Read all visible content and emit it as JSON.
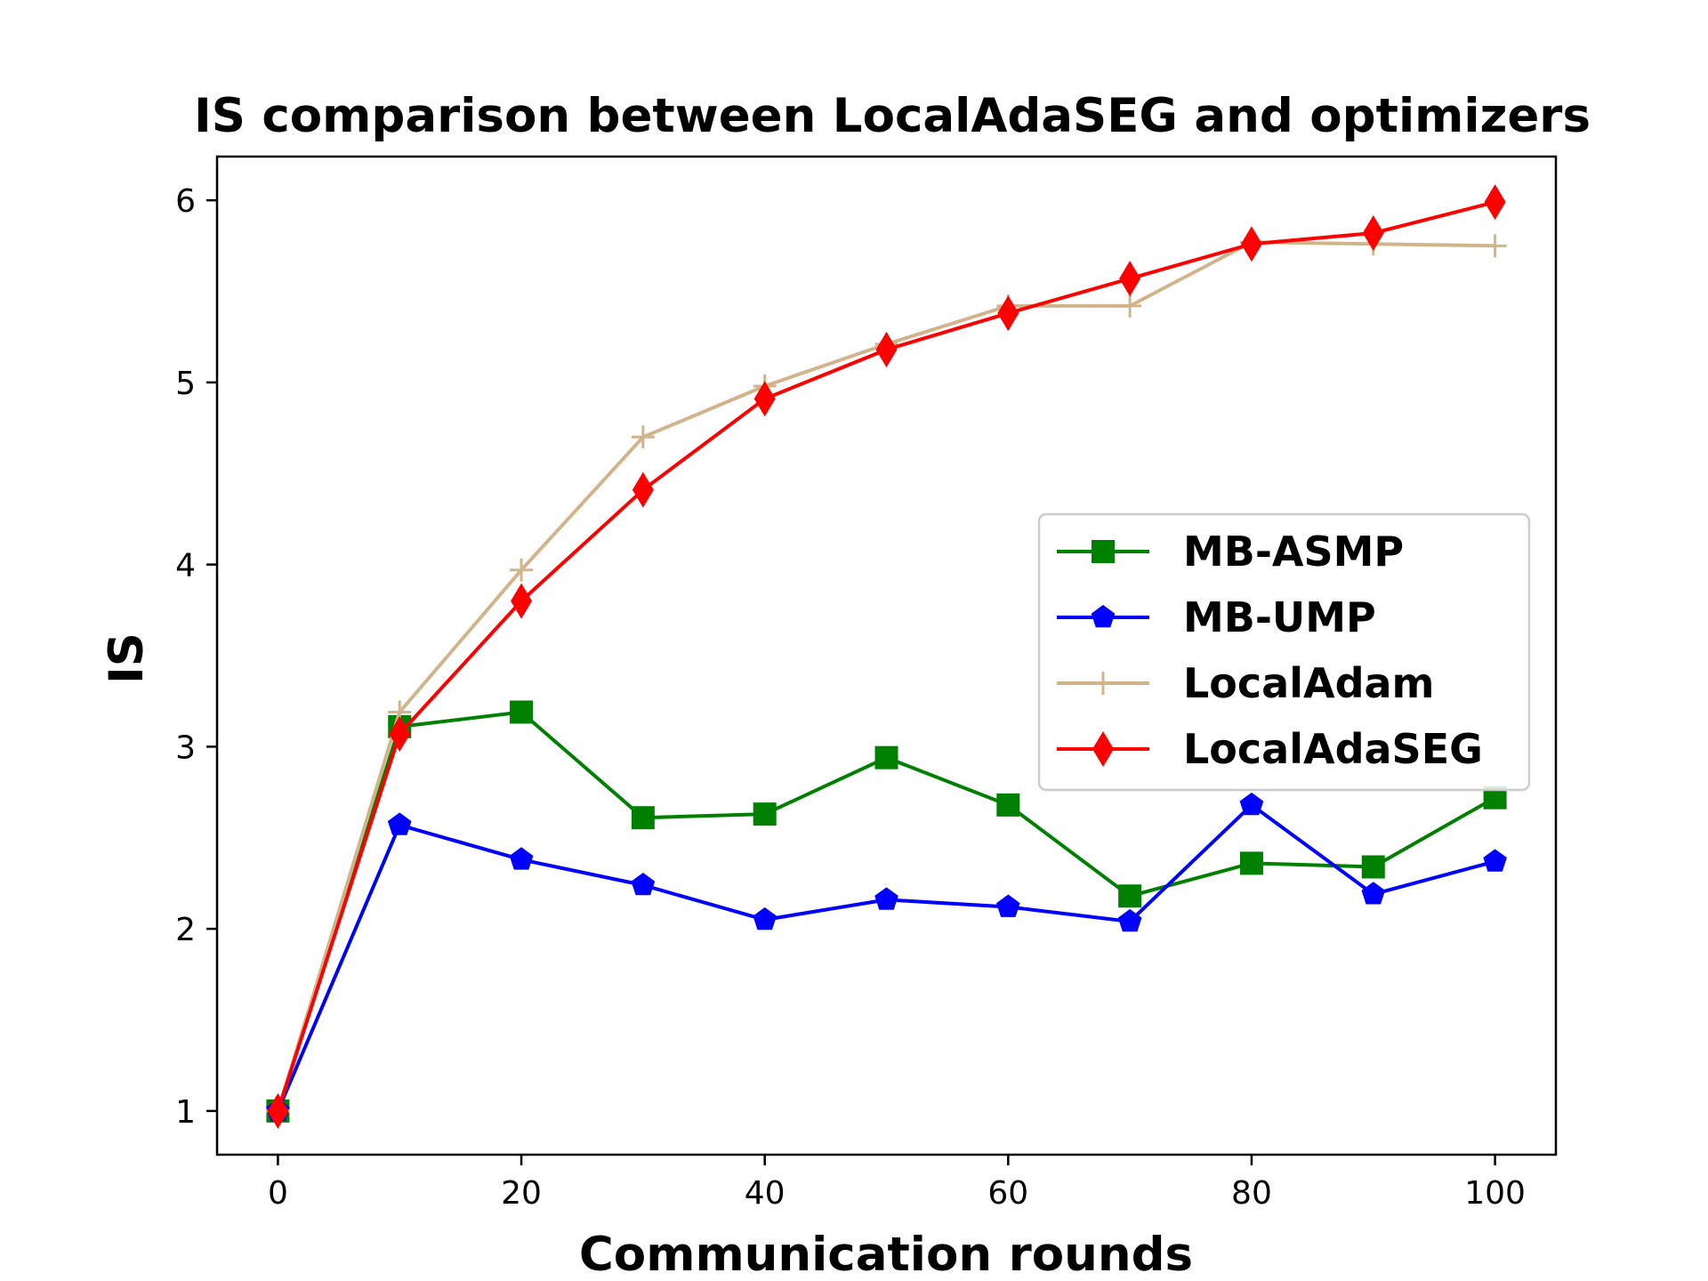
{
  "chart_data": {
    "type": "line",
    "title": "IS comparison between LocalAdaSEG and optimizers",
    "xlabel": "Communication rounds",
    "ylabel": "IS",
    "xlim": [
      -5,
      105
    ],
    "ylim": [
      0.76,
      6.24
    ],
    "xticks": [
      0,
      20,
      40,
      60,
      80,
      100
    ],
    "xtick_labels": [
      "0",
      "20",
      "40",
      "60",
      "80",
      "100"
    ],
    "yticks": [
      1,
      2,
      3,
      4,
      5,
      6
    ],
    "ytick_labels": [
      "1",
      "2",
      "3",
      "4",
      "5",
      "6"
    ],
    "x": [
      0,
      10,
      20,
      30,
      40,
      50,
      60,
      70,
      80,
      90,
      100
    ],
    "legend_position": "center-right",
    "series": [
      {
        "name": "MB-ASMP",
        "color": "#008000",
        "marker": "square",
        "values": [
          1.0,
          3.11,
          3.19,
          2.61,
          2.63,
          2.94,
          2.68,
          2.18,
          2.36,
          2.34,
          2.72
        ]
      },
      {
        "name": "MB-UMP",
        "color": "#0000ff",
        "marker": "pentagon",
        "values": [
          1.0,
          2.57,
          2.38,
          2.24,
          2.05,
          2.16,
          2.12,
          2.04,
          2.68,
          2.19,
          2.37
        ]
      },
      {
        "name": "LocalAdam",
        "color": "#d2b48c",
        "marker": "plus",
        "values": [
          1.0,
          3.19,
          3.97,
          4.7,
          4.98,
          5.21,
          5.42,
          5.42,
          5.77,
          5.76,
          5.75
        ]
      },
      {
        "name": "LocalAdaSEG",
        "color": "#ff0000",
        "marker": "diamond",
        "values": [
          1.0,
          3.07,
          3.8,
          4.41,
          4.91,
          5.18,
          5.38,
          5.57,
          5.76,
          5.82,
          5.99
        ]
      }
    ]
  }
}
